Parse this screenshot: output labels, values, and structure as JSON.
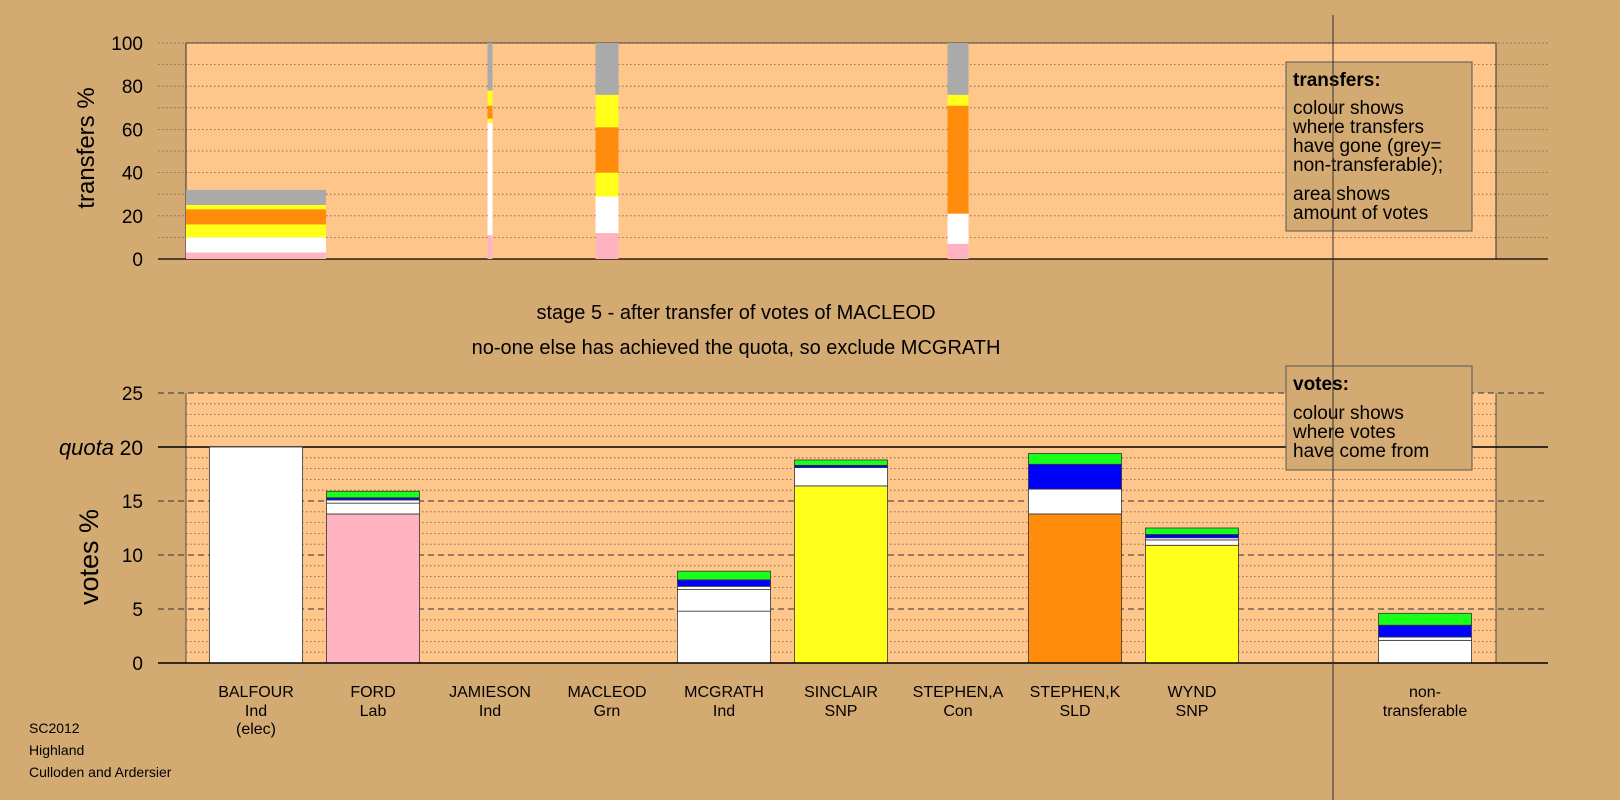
{
  "colors": {
    "page_bg": "#d4aa73",
    "plot_bg": "#ffc68c",
    "BALFOUR": "#ffffff",
    "FORD": "#ffb3c1",
    "JAMIESON": "#ffffff",
    "MACLEOD": "#1aff1a",
    "MCGRATH": "#ffffff",
    "SINCLAIR": "#ffff1a",
    "STEPHEN,A": "#0000ff",
    "STEPHEN,K": "#ff8c0a",
    "WYND": "#ffff1a",
    "non-transferable": "#aaaaaa"
  },
  "legend_transfers": {
    "title": "transfers:",
    "lines_a": [
      "colour shows",
      "where transfers",
      "have gone (grey=",
      "non-transferable);"
    ],
    "lines_b": [
      "area shows",
      "amount of votes"
    ]
  },
  "legend_votes": {
    "title": "votes:",
    "lines": [
      "colour shows",
      "where votes",
      "have come from"
    ]
  },
  "stage_text": {
    "line1": "stage 5 - after transfer of votes of MACLEOD",
    "line2": "no-one else has achieved the quota, so exclude MCGRATH"
  },
  "footer": [
    "SC2012",
    "Highland",
    "Culloden and Ardersier"
  ],
  "chart_data": [
    {
      "type": "bar",
      "name": "transfers",
      "ylabel": "transfers %",
      "ylim": [
        0,
        100
      ],
      "yticks": [
        0,
        20,
        40,
        60,
        80,
        100
      ],
      "grid": "dotted",
      "columns": [
        {
          "candidate": "BALFOUR",
          "total": 32,
          "segments": [
            {
              "to": "FORD",
              "value": 3
            },
            {
              "to": "MCGRATH",
              "value": 7
            },
            {
              "to": "SINCLAIR",
              "value": 6
            },
            {
              "to": "STEPHEN,K",
              "value": 7
            },
            {
              "to": "WYND",
              "value": 2
            },
            {
              "to": "non-transferable",
              "value": 7
            }
          ]
        },
        {
          "candidate": "JAMIESON",
          "total": 100,
          "segments": [
            {
              "to": "FORD",
              "value": 11
            },
            {
              "to": "MCGRATH",
              "value": 52
            },
            {
              "to": "SINCLAIR",
              "value": 2
            },
            {
              "to": "STEPHEN,K",
              "value": 6
            },
            {
              "to": "WYND",
              "value": 7
            },
            {
              "to": "non-transferable",
              "value": 22
            }
          ]
        },
        {
          "candidate": "MACLEOD",
          "total": 100,
          "segments": [
            {
              "to": "FORD",
              "value": 12
            },
            {
              "to": "MCGRATH",
              "value": 17
            },
            {
              "to": "SINCLAIR",
              "value": 11
            },
            {
              "to": "STEPHEN,K",
              "value": 21
            },
            {
              "to": "WYND",
              "value": 15
            },
            {
              "to": "non-transferable",
              "value": 24
            }
          ]
        },
        {
          "candidate": "STEPHEN,A",
          "total": 100,
          "segments": [
            {
              "to": "FORD",
              "value": 7
            },
            {
              "to": "MCGRATH",
              "value": 14
            },
            {
              "to": "SINCLAIR",
              "value": 0
            },
            {
              "to": "STEPHEN,K",
              "value": 50
            },
            {
              "to": "WYND",
              "value": 5
            },
            {
              "to": "non-transferable",
              "value": 24
            }
          ]
        }
      ]
    },
    {
      "type": "bar",
      "name": "votes",
      "ylabel": "votes %",
      "ylim": [
        0,
        25
      ],
      "yticks": [
        0,
        5,
        10,
        15,
        20,
        25
      ],
      "quota": {
        "label": "quota",
        "value": 20
      },
      "candidates": [
        {
          "name": "BALFOUR",
          "party": "Ind",
          "note": "(elec)",
          "segments": [
            {
              "from": "BALFOUR",
              "value": 20
            }
          ]
        },
        {
          "name": "FORD",
          "party": "Lab",
          "segments": [
            {
              "from": "FORD",
              "value": 13.8
            },
            {
              "from": "BALFOUR",
              "value": 1.0
            },
            {
              "from": "JAMIESON",
              "value": 0.3
            },
            {
              "from": "STEPHEN,A",
              "value": 0.2
            },
            {
              "from": "MACLEOD",
              "value": 0.6
            }
          ]
        },
        {
          "name": "JAMIESON",
          "party": "Ind",
          "segments": []
        },
        {
          "name": "MACLEOD",
          "party": "Grn",
          "segments": []
        },
        {
          "name": "MCGRATH",
          "party": "Ind",
          "segments": [
            {
              "from": "MCGRATH",
              "value": 4.8
            },
            {
              "from": "BALFOUR",
              "value": 2.0
            },
            {
              "from": "JAMIESON",
              "value": 0.3
            },
            {
              "from": "STEPHEN,A",
              "value": 0.6
            },
            {
              "from": "MACLEOD",
              "value": 0.8
            }
          ]
        },
        {
          "name": "SINCLAIR",
          "party": "SNP",
          "segments": [
            {
              "from": "SINCLAIR",
              "value": 16.4
            },
            {
              "from": "BALFOUR",
              "value": 1.7
            },
            {
              "from": "STEPHEN,A",
              "value": 0.2
            },
            {
              "from": "MACLEOD",
              "value": 0.5
            }
          ]
        },
        {
          "name": "STEPHEN,A",
          "party": "Con",
          "segments": []
        },
        {
          "name": "STEPHEN,K",
          "party": "SLD",
          "segments": [
            {
              "from": "STEPHEN,K",
              "value": 13.8
            },
            {
              "from": "BALFOUR",
              "value": 2.3
            },
            {
              "from": "STEPHEN,A",
              "value": 2.3
            },
            {
              "from": "MACLEOD",
              "value": 1.0
            }
          ]
        },
        {
          "name": "WYND",
          "party": "SNP",
          "segments": [
            {
              "from": "WYND",
              "value": 10.9
            },
            {
              "from": "BALFOUR",
              "value": 0.5
            },
            {
              "from": "JAMIESON",
              "value": 0.2
            },
            {
              "from": "STEPHEN,A",
              "value": 0.3
            },
            {
              "from": "MACLEOD",
              "value": 0.6
            }
          ]
        },
        {
          "name": "non-",
          "party": "transferable",
          "segments": [
            {
              "from": "BALFOUR",
              "value": 2.1
            },
            {
              "from": "JAMIESON",
              "value": 0.3
            },
            {
              "from": "STEPHEN,A",
              "value": 1.1
            },
            {
              "from": "MACLEOD",
              "value": 1.1
            }
          ]
        }
      ]
    }
  ]
}
